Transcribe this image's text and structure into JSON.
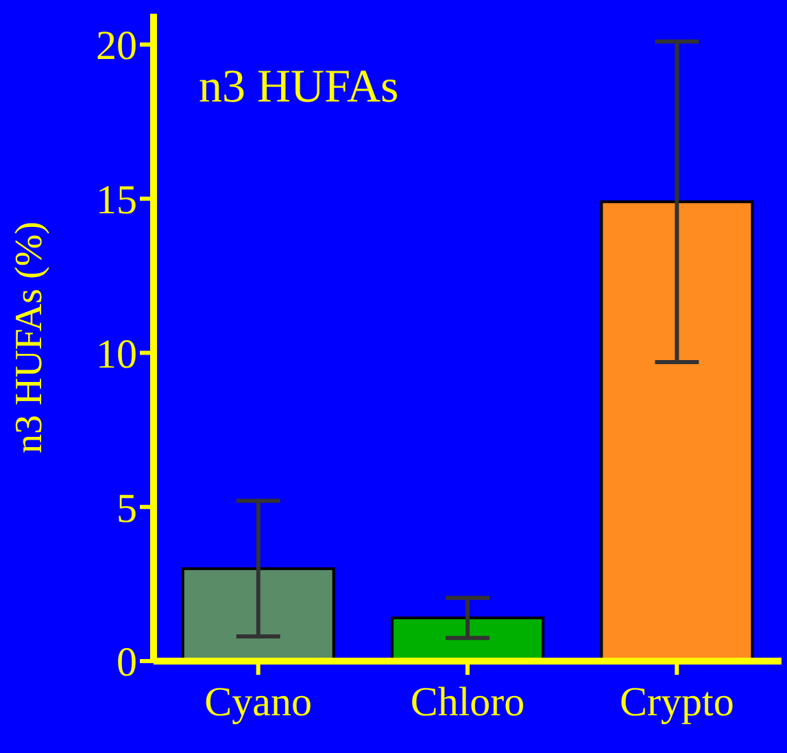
{
  "chart_data": {
    "type": "bar",
    "ylabel": "n3 HUFAs (%)",
    "annotations": [
      "n3 HUFAs"
    ],
    "categories": [
      "Cyano",
      "Chloro",
      "Crypto"
    ],
    "values": [
      3.0,
      1.4,
      14.9
    ],
    "colors": [
      "#5a8c68",
      "#00b000",
      "#ff8c20"
    ],
    "errors": [
      2.2,
      0.65,
      5.2
    ],
    "ylim": [
      0,
      21
    ],
    "yticks": [
      0,
      5,
      10,
      15,
      20
    ],
    "grid": false
  }
}
